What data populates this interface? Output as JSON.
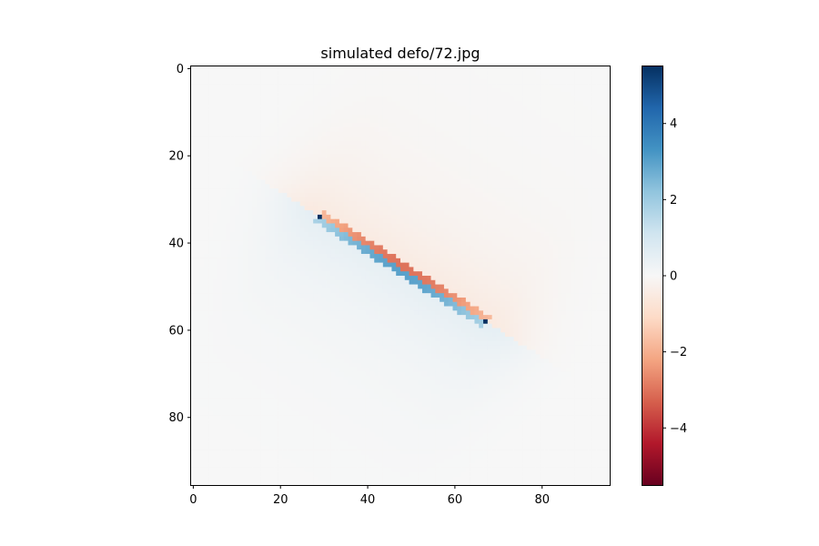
{
  "chart_data": {
    "type": "heatmap",
    "title": "simulated defo/72.jpg",
    "grid": false,
    "legend": "colorbar at right",
    "colormap": "RdBu",
    "colorbar_ticks": [
      "4",
      "2",
      "0",
      "−2",
      "−4"
    ],
    "colorbar_tick_values": [
      4,
      2,
      0,
      -2,
      -4
    ],
    "colorbar_range": [
      -5.5,
      5.5
    ],
    "xticks": [
      0,
      20,
      40,
      60,
      80
    ],
    "yticks": [
      0,
      20,
      40,
      60,
      80
    ],
    "x_extent": [
      -0.5,
      95.5
    ],
    "y_extent": [
      -0.5,
      95.5
    ],
    "y_axis_inverted": true,
    "fault_line": {
      "start": [
        29,
        34
      ],
      "end": [
        67,
        58
      ],
      "start_value": 5.5,
      "end_value": 5.5,
      "near_side_max": 3,
      "far_side_min": -3
    },
    "positive_lobe_center": [
      42,
      30
    ],
    "negative_lobe_center": [
      54,
      62
    ],
    "background_value": 0
  },
  "colors": {
    "colormap_stops": [
      "#67001f",
      "#b2182b",
      "#d6604d",
      "#f4a582",
      "#fddbc7",
      "#f7f7f7",
      "#d1e5f0",
      "#92c5de",
      "#4393c3",
      "#2166ac",
      "#053061"
    ]
  }
}
